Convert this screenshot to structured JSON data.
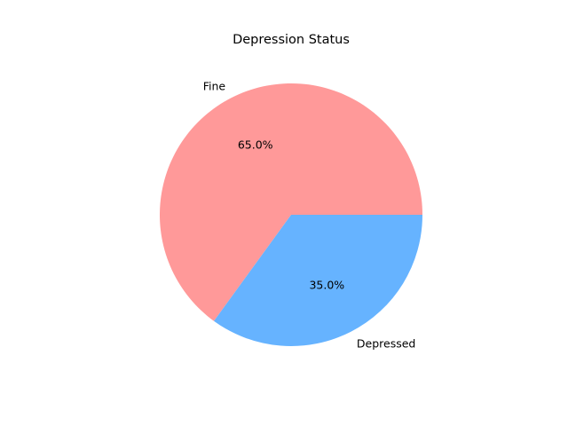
{
  "chart_data": {
    "type": "pie",
    "title": "Depression Status",
    "labels": [
      "Fine",
      "Depressed"
    ],
    "values": [
      65.0,
      35.0
    ],
    "percent_labels": [
      "65.0%",
      "35.0%"
    ],
    "colors": [
      "#ff9999",
      "#66b3ff"
    ],
    "start_angle_deg": 0,
    "direction": "counterclockwise"
  }
}
